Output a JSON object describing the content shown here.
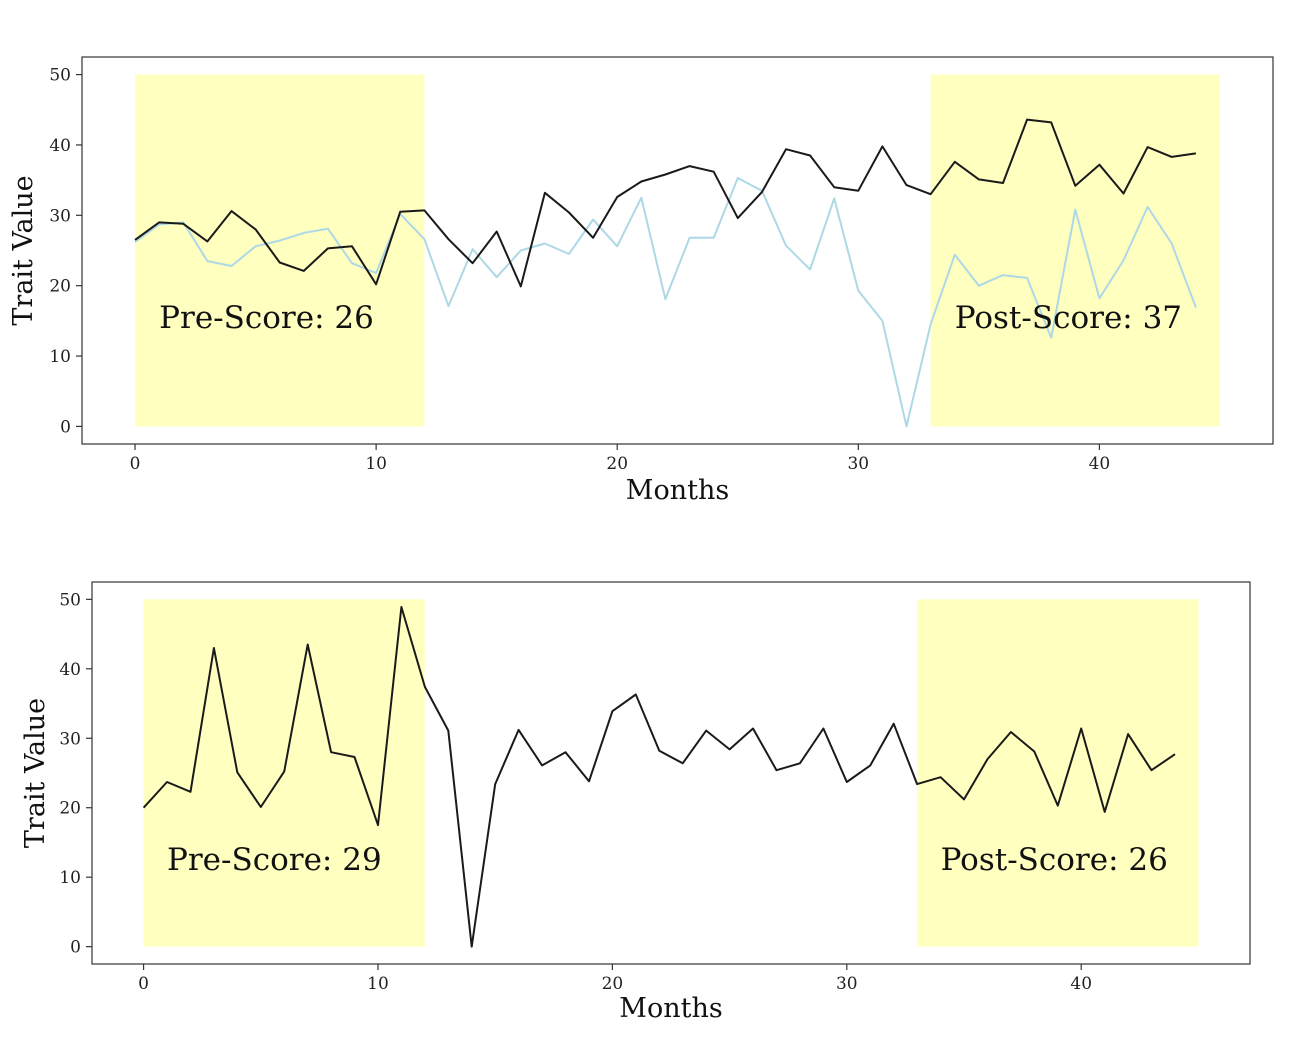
{
  "chart_data": [
    {
      "type": "line",
      "title": "",
      "xlabel": "Months",
      "ylabel": "Trait Value",
      "xlim": [
        -2.2,
        47.2
      ],
      "ylim": [
        -2.5,
        52.5
      ],
      "xticks": [
        0,
        10,
        20,
        30,
        40
      ],
      "yticks": [
        0,
        10,
        20,
        30,
        40,
        50
      ],
      "grid": false,
      "highlight_color": "#ffffc0",
      "regions": [
        {
          "x0": 0,
          "x1": 12,
          "y0": 0,
          "y1": 50,
          "label": "Pre-Score: 26",
          "label_x": 1,
          "label_y": 14
        },
        {
          "x0": 33,
          "x1": 45,
          "y0": 0,
          "y1": 50,
          "label": "Post-Score: 37",
          "label_x": 34,
          "label_y": 14
        }
      ],
      "series": [
        {
          "color": "#add8e6",
          "x": [
            0,
            1,
            2,
            3,
            4,
            5,
            6,
            7,
            8,
            9,
            10,
            11,
            12,
            13,
            14,
            15,
            16,
            17,
            18,
            19,
            20,
            21,
            22,
            23,
            24,
            25,
            26,
            27,
            28,
            29,
            30,
            31,
            32,
            33,
            34,
            35,
            36,
            37,
            38,
            39,
            40,
            41,
            42,
            43,
            44
          ],
          "y": [
            26.2,
            28.7,
            29,
            23.5,
            22.8,
            25.6,
            26.4,
            27.5,
            28.1,
            23.2,
            21.8,
            30.2,
            26.6,
            17.1,
            25.2,
            21.2,
            25,
            26,
            24.5,
            29.4,
            25.6,
            32.5,
            18.1,
            26.8,
            26.8,
            35.3,
            33.5,
            25.7,
            22.3,
            32.4,
            19.3,
            15,
            0,
            14.5,
            24.4,
            20,
            21.5,
            21.1,
            12.6,
            30.8,
            18.2,
            23.6,
            31.2,
            26,
            16.9
          ]
        },
        {
          "color": "#1a1a1a",
          "x": [
            0,
            1,
            2,
            3,
            4,
            5,
            6,
            7,
            8,
            9,
            10,
            11,
            12,
            13,
            14,
            15,
            16,
            17,
            18,
            19,
            20,
            21,
            22,
            23,
            24,
            25,
            26,
            27,
            28,
            29,
            30,
            31,
            32,
            33,
            34,
            35,
            36,
            37,
            38,
            39,
            40,
            41,
            42,
            43,
            44
          ],
          "y": [
            26.5,
            29,
            28.8,
            26.3,
            30.6,
            28,
            23.3,
            22.1,
            25.3,
            25.6,
            20.2,
            30.5,
            30.7,
            26.6,
            23.2,
            27.7,
            19.9,
            33.2,
            30.4,
            26.8,
            32.6,
            34.8,
            35.8,
            37,
            36.2,
            29.6,
            33.3,
            39.4,
            38.5,
            34,
            33.5,
            39.8,
            34.3,
            33,
            37.6,
            35.1,
            34.6,
            43.6,
            43.2,
            34.2,
            37.2,
            33.1,
            39.7,
            38.3,
            38.8
          ]
        }
      ]
    },
    {
      "type": "line",
      "title": "",
      "xlabel": "Months",
      "ylabel": "Trait Value",
      "xlim": [
        -2.2,
        47.2
      ],
      "ylim": [
        -2.5,
        52.5
      ],
      "xticks": [
        0,
        10,
        20,
        30,
        40
      ],
      "yticks": [
        0,
        10,
        20,
        30,
        40,
        50
      ],
      "grid": false,
      "highlight_color": "#ffffc0",
      "regions": [
        {
          "x0": 0,
          "x1": 12,
          "y0": 0,
          "y1": 50,
          "label": "Pre-Score: 29",
          "label_x": 1,
          "label_y": 11
        },
        {
          "x0": 33,
          "x1": 45,
          "y0": 0,
          "y1": 50,
          "label": "Post-Score: 26",
          "label_x": 34,
          "label_y": 11
        }
      ],
      "series": [
        {
          "color": "#1a1a1a",
          "x": [
            0,
            1,
            2,
            3,
            4,
            5,
            6,
            7,
            8,
            9,
            10,
            11,
            12,
            13,
            14,
            15,
            16,
            17,
            18,
            19,
            20,
            21,
            22,
            23,
            24,
            25,
            26,
            27,
            28,
            29,
            30,
            31,
            32,
            33,
            34,
            35,
            36,
            37,
            38,
            39,
            40,
            41,
            42,
            43,
            44
          ],
          "y": [
            20,
            23.7,
            22.3,
            43,
            25.1,
            20.1,
            25.2,
            43.5,
            28,
            27.3,
            17.5,
            48.9,
            37.4,
            31.1,
            0,
            23.4,
            31.2,
            26.1,
            28,
            23.8,
            33.9,
            36.3,
            28.2,
            26.4,
            31.1,
            28.4,
            31.4,
            25.4,
            26.4,
            31.4,
            23.7,
            26.1,
            32.1,
            23.4,
            24.4,
            21.2,
            27,
            30.9,
            28.1,
            20.3,
            31.4,
            19.4,
            30.6,
            25.4,
            27.7
          ]
        }
      ]
    }
  ]
}
